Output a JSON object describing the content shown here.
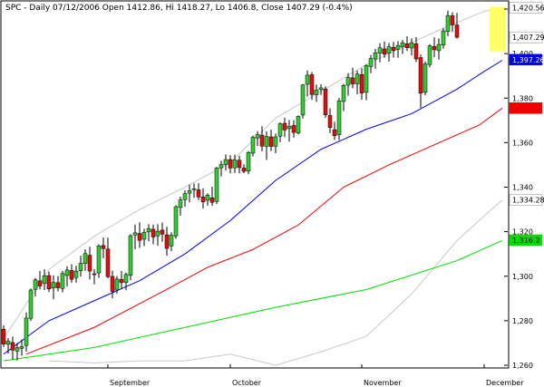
{
  "chart_data": {
    "type": "candlestick",
    "title": "SPC - Daily 07/12/2006 Open 1412.86, Hi 1418.27, Lo 1406.8, Close 1407.29 (-0.4%)",
    "ylim": [
      1260,
      1420
    ],
    "y_ticks": [
      "1,260",
      "1,280",
      "1,300",
      "1,320",
      "1,340",
      "1,360",
      "1,380",
      "1,400",
      "1,420"
    ],
    "month_labels": [
      {
        "label": "September",
        "index": 23
      },
      {
        "label": "October",
        "index": 50
      },
      {
        "label": "November",
        "index": 79
      },
      {
        "label": "December",
        "index": 106
      }
    ],
    "colors": {
      "up": "#33cc33",
      "down": "#e01010",
      "ma20": "#0000ee",
      "ma50": "#ee0000",
      "ma200": "#00dd00",
      "bands": "#c8c8c8",
      "highlight": "#ffff66"
    },
    "price_labels": [
      {
        "text": "1,420.56",
        "value": 1420.56,
        "bg": "#ffffff",
        "fg": "#000000"
      },
      {
        "text": "1,407.29",
        "value": 1407.29,
        "bg": "#ffffff",
        "fg": "#000000"
      },
      {
        "text": "1,397.26",
        "value": 1397.26,
        "bg": "#0000ee",
        "fg": "#ffffff"
      },
      {
        "text": "1,375",
        "value": 1375.5,
        "bg": "#ee0000",
        "fg": "#ee0000"
      },
      {
        "text": "1,334.28",
        "value": 1334.28,
        "bg": "#ffffff",
        "fg": "#000000"
      },
      {
        "text": "1,316.2",
        "value": 1316.2,
        "bg": "#00dd00",
        "fg": "#000000"
      }
    ],
    "highlight": {
      "from_index": 108,
      "to_index": 110,
      "ymin": 1401,
      "ymax": 1421
    },
    "series": [
      {
        "name": "MA20",
        "color": "#0000ee",
        "x": [
          0,
          10,
          20,
          30,
          40,
          50,
          60,
          70,
          80,
          90,
          100,
          106,
          110
        ],
        "values": [
          1265,
          1280,
          1289,
          1298,
          1310,
          1325,
          1343,
          1357,
          1366,
          1373,
          1384,
          1392,
          1397
        ]
      },
      {
        "name": "MA50",
        "color": "#ee0000",
        "x": [
          5,
          20,
          35,
          45,
          55,
          65,
          75,
          85,
          95,
          105,
          110
        ],
        "values": [
          1265,
          1277,
          1293,
          1304,
          1312,
          1323,
          1340,
          1350,
          1359,
          1368,
          1375.5
        ]
      },
      {
        "name": "MA200",
        "color": "#00dd00",
        "x": [
          0,
          20,
          40,
          60,
          80,
          100,
          110
        ],
        "values": [
          1262,
          1268,
          1277,
          1286,
          1294,
          1307,
          1316
        ]
      },
      {
        "name": "Upper band",
        "color": "#c8c8c8",
        "x": [
          0,
          10,
          20,
          30,
          40,
          50,
          60,
          70,
          80,
          90,
          100,
          106,
          110
        ],
        "values": [
          1272,
          1303,
          1318,
          1330,
          1340,
          1351,
          1371,
          1383,
          1395,
          1405,
          1414,
          1419,
          1420.56
        ]
      },
      {
        "name": "Lower band",
        "color": "#c8c8c8",
        "x": [
          10,
          20,
          30,
          40,
          50,
          60,
          70,
          80,
          90,
          100,
          106,
          110
        ],
        "values": [
          1262,
          1261,
          1262,
          1262,
          1265,
          1260,
          1266,
          1273,
          1292,
          1316,
          1327,
          1334.28
        ]
      }
    ],
    "candles": [
      [
        1276.2,
        1277.9,
        1268.2,
        1269.5
      ],
      [
        1269.4,
        1272.2,
        1265.2,
        1270.8
      ],
      [
        1270.2,
        1272.9,
        1262.6,
        1266.8
      ],
      [
        1266.4,
        1270.1,
        1262.2,
        1267.9
      ],
      [
        1267.6,
        1271.5,
        1264.3,
        1268.4
      ],
      [
        1268.9,
        1283.7,
        1266.1,
        1281.2
      ],
      [
        1281.1,
        1294.5,
        1279.9,
        1293.8
      ],
      [
        1294.1,
        1299.2,
        1290.9,
        1298.4
      ],
      [
        1297.9,
        1302.4,
        1294.1,
        1295.6
      ],
      [
        1296.7,
        1303.1,
        1293.8,
        1300.2
      ],
      [
        1300.3,
        1302.1,
        1292.9,
        1294.3
      ],
      [
        1294.7,
        1300.4,
        1289.6,
        1297.2
      ],
      [
        1297.1,
        1300.1,
        1293.2,
        1294.8
      ],
      [
        1294.5,
        1302.4,
        1292.7,
        1301.2
      ],
      [
        1300.3,
        1304.5,
        1295.4,
        1302.8
      ],
      [
        1302.6,
        1305.4,
        1297.1,
        1298.6
      ],
      [
        1299.4,
        1304.7,
        1297.1,
        1302.3
      ],
      [
        1302.5,
        1309.2,
        1299.8,
        1305.8
      ],
      [
        1305.7,
        1312.1,
        1302.4,
        1310.2
      ],
      [
        1309.4,
        1313.2,
        1298.5,
        1302.3
      ],
      [
        1301.1,
        1303.2,
        1296.4,
        1300.8
      ],
      [
        1301.5,
        1314.3,
        1299.2,
        1313.6
      ],
      [
        1313.8,
        1317.4,
        1308.1,
        1312.4
      ],
      [
        1312.2,
        1317.3,
        1299.1,
        1299.8
      ],
      [
        1299.9,
        1302.5,
        1290.1,
        1293.2
      ],
      [
        1293.8,
        1300.1,
        1292.2,
        1298.7
      ],
      [
        1298.6,
        1302.4,
        1294.4,
        1297.1
      ],
      [
        1297.2,
        1301.6,
        1293.7,
        1300.8
      ],
      [
        1300.4,
        1318.9,
        1298.1,
        1318.2
      ],
      [
        1318.5,
        1323.2,
        1312.1,
        1319.5
      ],
      [
        1319.2,
        1324.2,
        1312.7,
        1316.1
      ],
      [
        1316.6,
        1321.3,
        1313.5,
        1319.7
      ],
      [
        1319.9,
        1323.4,
        1315.7,
        1321.4
      ],
      [
        1321.1,
        1323.2,
        1314.4,
        1317.6
      ],
      [
        1318.1,
        1323.4,
        1313.7,
        1320.2
      ],
      [
        1320.7,
        1324.1,
        1315.5,
        1318.9
      ],
      [
        1318.6,
        1322.2,
        1309.2,
        1312.5
      ],
      [
        1313.6,
        1319.7,
        1311.3,
        1318.4
      ],
      [
        1318.1,
        1331.9,
        1316.8,
        1331.2
      ],
      [
        1330.9,
        1335.7,
        1327.2,
        1334.3
      ],
      [
        1334.4,
        1338.6,
        1331.2,
        1337.1
      ],
      [
        1337.3,
        1341.1,
        1333.2,
        1338.4
      ],
      [
        1339.1,
        1341.7,
        1335.2,
        1339.3
      ],
      [
        1338.8,
        1341.8,
        1334.2,
        1335.6
      ],
      [
        1335.6,
        1339.5,
        1330.4,
        1333.4
      ],
      [
        1334.1,
        1337.2,
        1331.7,
        1336.4
      ],
      [
        1335.2,
        1340.2,
        1331.6,
        1333.2
      ],
      [
        1333.6,
        1349.1,
        1332.4,
        1348.6
      ],
      [
        1348.7,
        1351.8,
        1344.8,
        1350.2
      ],
      [
        1350.2,
        1354.7,
        1347.5,
        1352.4
      ],
      [
        1352.4,
        1354.4,
        1346.2,
        1348.6
      ],
      [
        1348.7,
        1354.6,
        1346.4,
        1352.2
      ],
      [
        1352.1,
        1354.1,
        1346.2,
        1348.8
      ],
      [
        1348.6,
        1350.3,
        1346.3,
        1347.1
      ],
      [
        1347.2,
        1356.2,
        1345.8,
        1355.6
      ],
      [
        1355.3,
        1363.2,
        1353.8,
        1362.4
      ],
      [
        1362.1,
        1365.2,
        1358.4,
        1363.6
      ],
      [
        1363.4,
        1367.4,
        1356.1,
        1358.4
      ],
      [
        1358.4,
        1365.1,
        1352.2,
        1362.8
      ],
      [
        1362.6,
        1365.8,
        1356.2,
        1358.3
      ],
      [
        1358.4,
        1364.1,
        1355.2,
        1362.6
      ],
      [
        1362.9,
        1369.1,
        1360.2,
        1368.5
      ],
      [
        1368.7,
        1371.2,
        1362.5,
        1365.7
      ],
      [
        1366.3,
        1370.2,
        1360.4,
        1367.4
      ],
      [
        1367.7,
        1370.1,
        1362.3,
        1364.6
      ],
      [
        1364.3,
        1372.2,
        1363.7,
        1371.8
      ],
      [
        1372.4,
        1386.3,
        1370.8,
        1385.9
      ],
      [
        1386.2,
        1392.4,
        1380.7,
        1390.3
      ],
      [
        1390.5,
        1391.7,
        1379.2,
        1381.6
      ],
      [
        1381.5,
        1386.1,
        1378.3,
        1383.7
      ],
      [
        1383.8,
        1386.2,
        1381.4,
        1384.6
      ],
      [
        1384.1,
        1385.3,
        1371.2,
        1372.5
      ],
      [
        1372.2,
        1375.4,
        1364.3,
        1366.8
      ],
      [
        1365.8,
        1369.4,
        1361.2,
        1363.1
      ],
      [
        1363.6,
        1380.1,
        1361.1,
        1378.8
      ],
      [
        1378.5,
        1386.4,
        1374.2,
        1385.7
      ],
      [
        1385.8,
        1391.2,
        1381.1,
        1389.3
      ],
      [
        1389.1,
        1393.7,
        1384.5,
        1386.4
      ],
      [
        1386.4,
        1392.4,
        1381.7,
        1390.8
      ],
      [
        1390.6,
        1393.4,
        1379.3,
        1382.3
      ],
      [
        1382.6,
        1395.2,
        1379.1,
        1394.6
      ],
      [
        1394.2,
        1399.4,
        1391.2,
        1397.8
      ],
      [
        1397.6,
        1402.1,
        1393.2,
        1400.4
      ],
      [
        1400.2,
        1404.7,
        1396.1,
        1402.6
      ],
      [
        1402.1,
        1405.4,
        1398.1,
        1399.8
      ],
      [
        1400.2,
        1404.8,
        1396.4,
        1403.1
      ],
      [
        1402.8,
        1405.3,
        1398.2,
        1401.4
      ],
      [
        1401.9,
        1405.6,
        1398.1,
        1403.6
      ],
      [
        1403.1,
        1406.1,
        1399.8,
        1404.9
      ],
      [
        1404.4,
        1407.8,
        1401.2,
        1402.6
      ],
      [
        1402.5,
        1406.8,
        1399.2,
        1404.8
      ],
      [
        1404.4,
        1407.4,
        1396.2,
        1397.6
      ],
      [
        1398.2,
        1399.6,
        1375.6,
        1382.2
      ],
      [
        1382.6,
        1396.4,
        1381.3,
        1395.4
      ],
      [
        1395.1,
        1404.2,
        1393.8,
        1403.5
      ],
      [
        1403.2,
        1407.3,
        1398.4,
        1401.7
      ],
      [
        1401.3,
        1406.8,
        1397.3,
        1404.1
      ],
      [
        1403.8,
        1411.5,
        1402.2,
        1410.2
      ],
      [
        1409.9,
        1419.3,
        1407.8,
        1417.1
      ],
      [
        1417.0,
        1418.5,
        1409.7,
        1412.9
      ],
      [
        1412.86,
        1418.27,
        1406.8,
        1407.29
      ]
    ]
  }
}
